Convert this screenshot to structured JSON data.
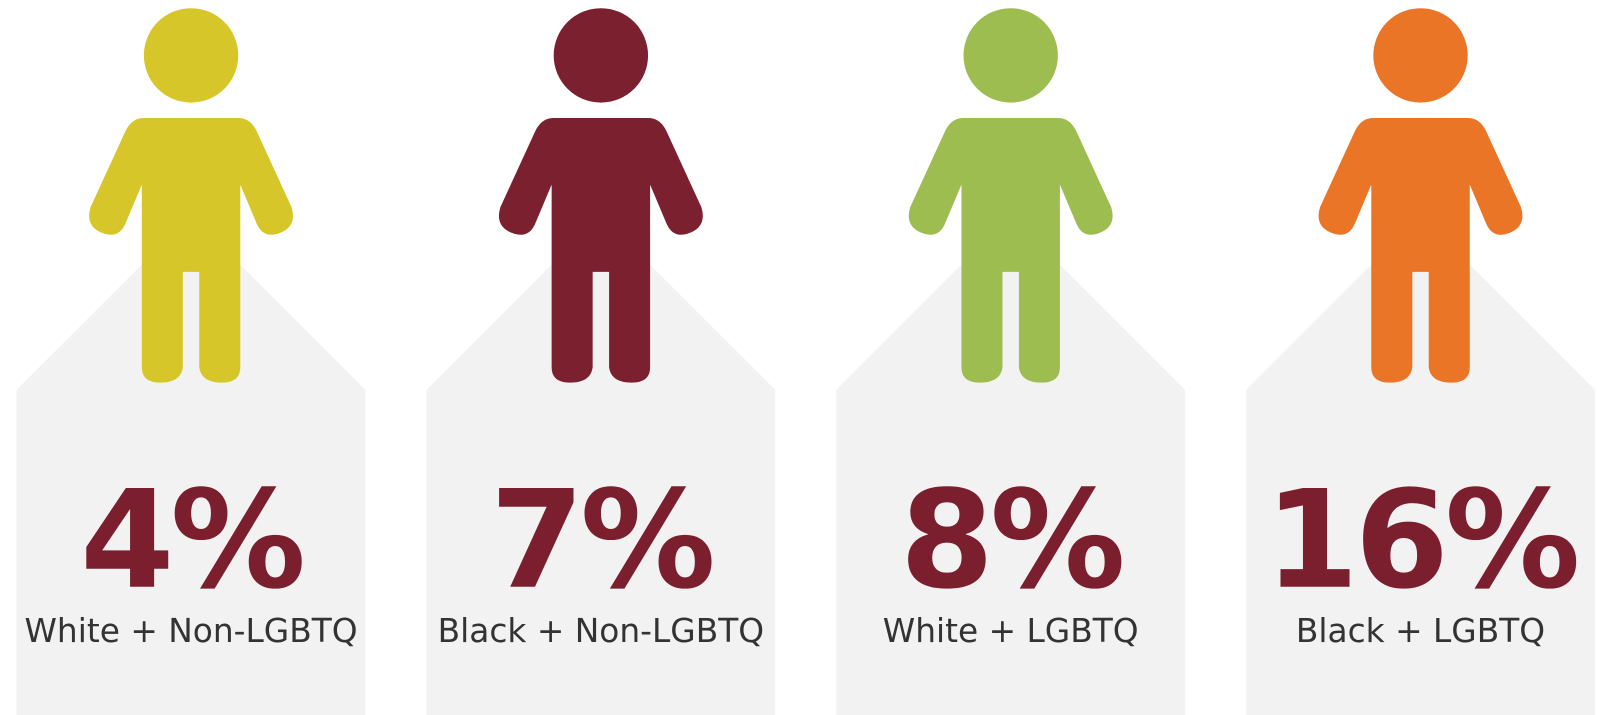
{
  "items": [
    {
      "value": "4%",
      "label": "White + Non-LGBTQ",
      "color": "#d7c62a"
    },
    {
      "value": "7%",
      "label": "Black + Non-LGBTQ",
      "color": "#7b202e"
    },
    {
      "value": "8%",
      "label": "White + LGBTQ",
      "color": "#9dbd50"
    },
    {
      "value": "16%",
      "label": "Black + LGBTQ",
      "color": "#eb7526"
    }
  ]
}
